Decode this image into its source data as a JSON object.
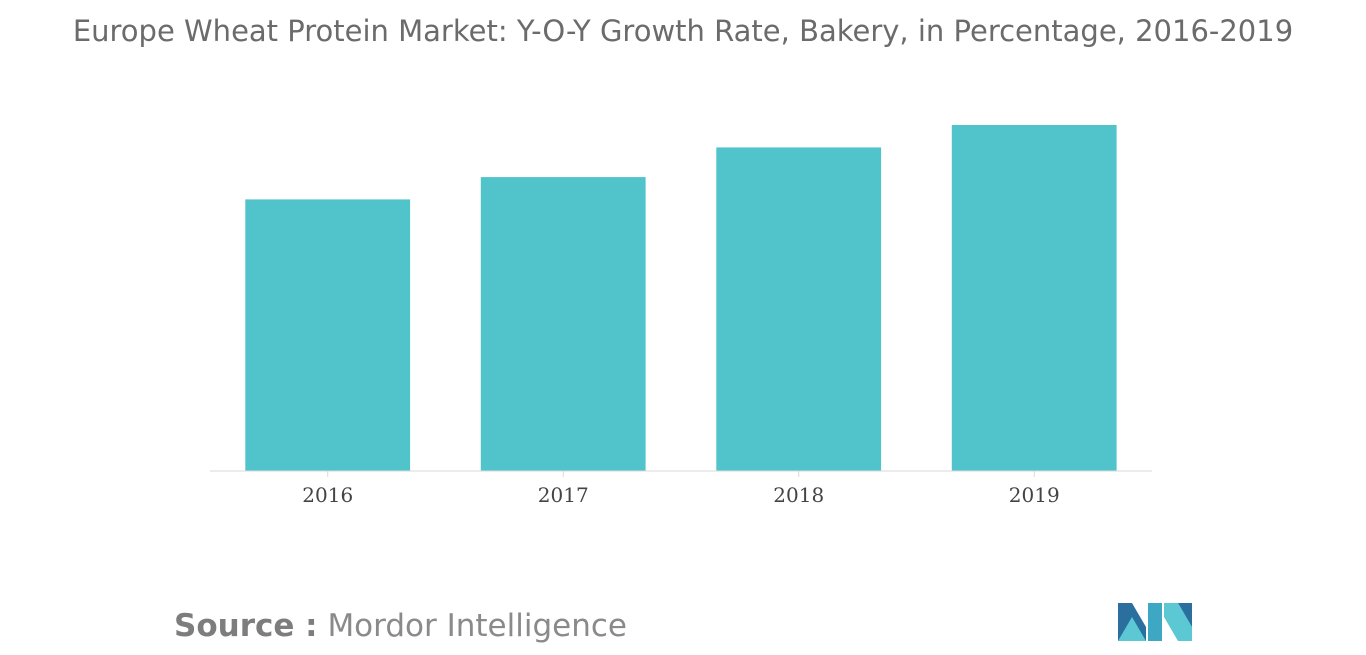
{
  "title": "Europe Wheat Protein Market: Y-O-Y Growth Rate, Bakery, in Percentage, 2016-2019",
  "source": {
    "label": "Source :",
    "text": "Mordor Intelligence"
  },
  "logo": {
    "icon": "mordor-intelligence-logo-icon",
    "colors": [
      "#2a6f9e",
      "#5bc8d4",
      "#3ea8c4"
    ]
  },
  "chart_data": {
    "type": "bar",
    "categories": [
      "2016",
      "2017",
      "2018",
      "2019"
    ],
    "values": [
      7.3,
      7.9,
      8.7,
      9.3
    ],
    "ylim": [
      0,
      10
    ],
    "bar_color": "#51c3cb",
    "title": "Europe Wheat Protein Market: Y-O-Y Growth Rate, Bakery, in Percentage, 2016-2019",
    "xlabel": "",
    "ylabel": "",
    "grid": false,
    "legend": "none"
  }
}
